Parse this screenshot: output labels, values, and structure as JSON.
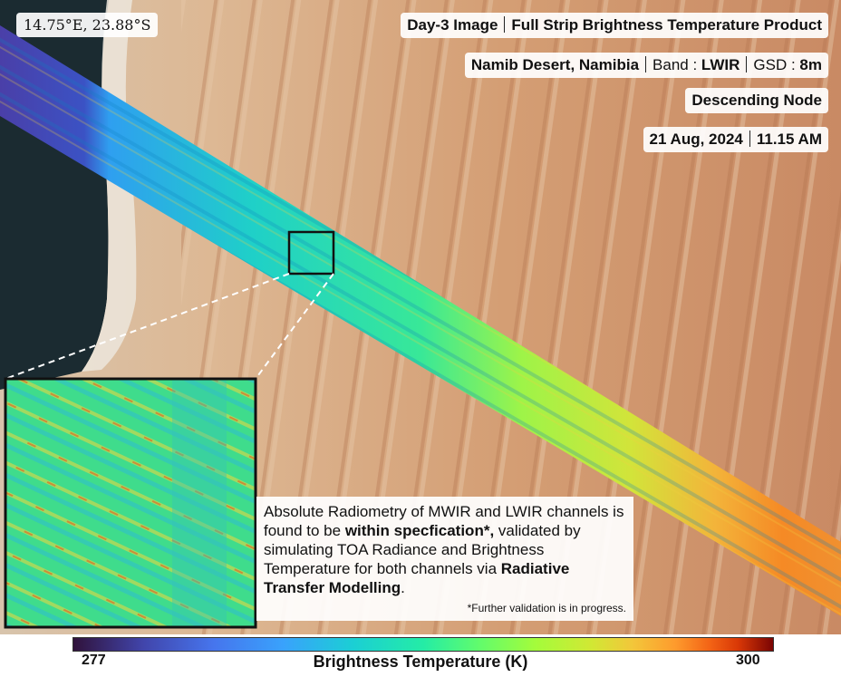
{
  "overlay": {
    "coordinates": "14.75°E, 23.88°S",
    "title_left": "Day-3 Image",
    "title_right": "Full Strip Brightness Temperature Product",
    "location": "Namib Desert, Namibia",
    "band_label": "Band : ",
    "band_value": "LWIR",
    "gsd_label": "GSD : ",
    "gsd_value": "8m",
    "node": "Descending Node",
    "date": "21 Aug, 2024",
    "time": "11.15 AM"
  },
  "note": {
    "text_1": "Absolute Radiometry of MWIR and LWIR channels is found to be ",
    "text_bold_1": "within specfication*,",
    "text_2": " validated by simulating TOA Radiance and Brightness Temperature for both channels via ",
    "text_bold_2": "Radiative Transfer Modelling",
    "text_3": ".",
    "footnote": "*Further validation is in progress."
  },
  "colorbar": {
    "min": "277",
    "max": "300",
    "label": "Brightness Temperature (K)",
    "colormap": "turbo"
  },
  "colors": {
    "ocean": "#1a2a30",
    "sand": "#d9b48f",
    "dune": "#c98a5c"
  }
}
